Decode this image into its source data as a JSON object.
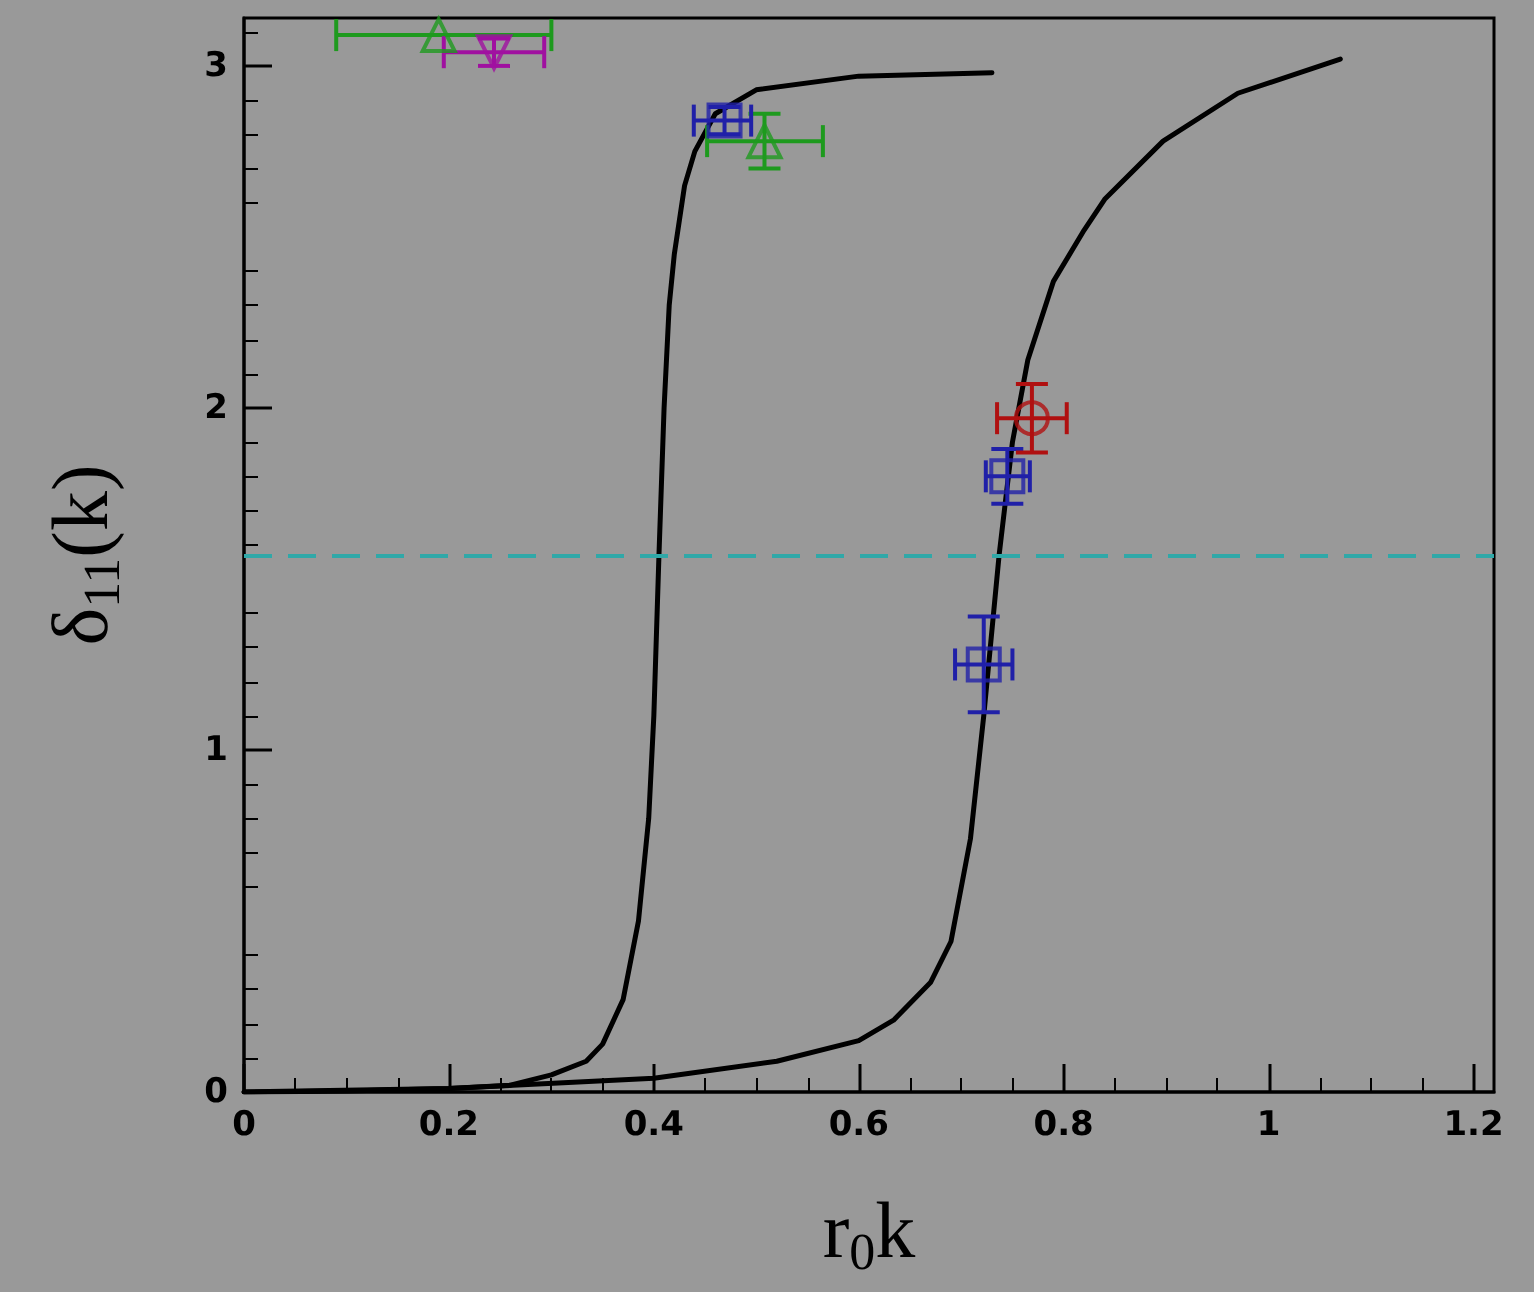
{
  "chart_data": {
    "type": "scatter",
    "xlabel": "r$_{0}$k",
    "ylabel": "δ$_{11}$(k)",
    "xlim": [
      0,
      1.22
    ],
    "ylim": [
      0,
      3.14
    ],
    "xticks": [
      0,
      0.2,
      0.4,
      0.6,
      0.8,
      1,
      1.2
    ],
    "yticks": [
      0,
      1,
      2,
      3
    ],
    "series": [
      {
        "type": "line",
        "color": "#000000",
        "marker": "none",
        "x": [
          0,
          0.1,
          0.2,
          0.26,
          0.3,
          0.334,
          0.35,
          0.37,
          0.385,
          0.395,
          0.4,
          0.405,
          0.41,
          0.415,
          0.42,
          0.43,
          0.44,
          0.46,
          0.5,
          0.6,
          0.73
        ],
        "values": [
          0,
          0.003,
          0.01,
          0.02,
          0.05,
          0.09,
          0.14,
          0.27,
          0.5,
          0.8,
          1.1,
          1.57,
          2.0,
          2.3,
          2.45,
          2.65,
          2.75,
          2.86,
          2.93,
          2.97,
          2.98
        ]
      },
      {
        "type": "line",
        "color": "#000000",
        "marker": "none",
        "x": [
          0,
          0.2,
          0.4,
          0.52,
          0.6,
          0.634,
          0.67,
          0.69,
          0.709,
          0.722,
          0.737,
          0.75,
          0.765,
          0.79,
          0.82,
          0.84,
          0.897,
          0.97,
          1.07
        ],
        "values": [
          0,
          0.01,
          0.04,
          0.09,
          0.15,
          0.21,
          0.32,
          0.44,
          0.74,
          1.1,
          1.57,
          1.9,
          2.14,
          2.37,
          2.52,
          2.61,
          2.78,
          2.92,
          3.02
        ]
      },
      {
        "color": "#1e9a1e",
        "marker": "triangle",
        "x": [
          0.19,
          0.508
        ],
        "values": [
          3.09,
          2.78
        ],
        "xerrors": [
          [
            0.09,
            0.3
          ],
          [
            0.452,
            0.565
          ]
        ],
        "errors": [
          null,
          0.08
        ]
      },
      {
        "color": "#a010a0",
        "marker": "triangle_down",
        "x": [
          0.244
        ],
        "values": [
          3.04
        ],
        "xerrors": [
          [
            0.195,
            0.293
          ]
        ],
        "errors": [
          0.04
        ]
      },
      {
        "color": "#2020a8",
        "marker": "square",
        "x": [
          0.469,
          0.745,
          0.722
        ],
        "values": [
          2.84,
          1.8,
          1.25
        ],
        "xerrors": [
          [
            0.439,
            0.495
          ],
          [
            0.724,
            0.767
          ],
          [
            0.694,
            0.75
          ]
        ],
        "errors": [
          0.04,
          0.08,
          0.14
        ]
      },
      {
        "color": "#b01010",
        "marker": "circle",
        "x": [
          0.769
        ],
        "values": [
          1.97
        ],
        "xerrors": [
          [
            0.735,
            0.803
          ]
        ],
        "errors": [
          0.1
        ]
      }
    ],
    "ref_lines": [
      {
        "axis": "y",
        "value": 1.57,
        "color": "#30a8a8",
        "line_style": "dashed"
      }
    ]
  }
}
